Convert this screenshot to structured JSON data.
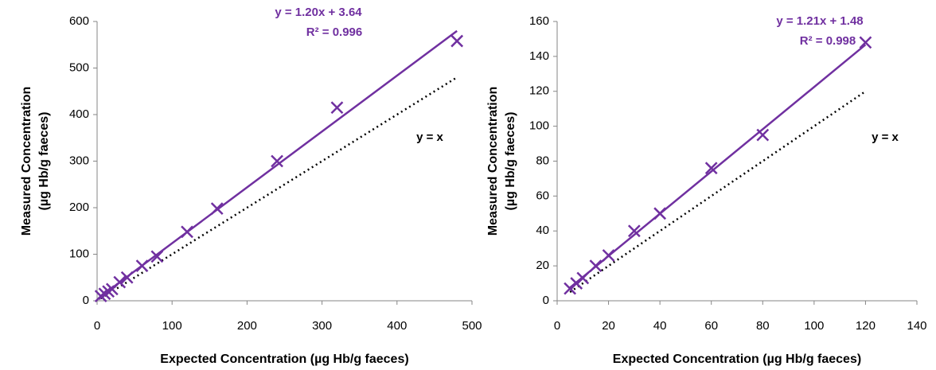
{
  "chart_data": [
    {
      "type": "scatter",
      "x_label": "Expected Concentration (µg Hb/g faeces)",
      "y_label": [
        "Measured Concentration",
        "(µg Hb/g faeces)"
      ],
      "xlim": [
        0,
        500
      ],
      "xticks": [
        0,
        100,
        200,
        300,
        400,
        500
      ],
      "ylim": [
        0,
        600
      ],
      "yticks": [
        0,
        100,
        200,
        300,
        400,
        500,
        600
      ],
      "series": [
        {
          "color": "#7030a0",
          "x": [
            5,
            10,
            15,
            20,
            30,
            40,
            60,
            80,
            120,
            160,
            240,
            320,
            480
          ],
          "values": [
            10,
            15,
            20,
            25,
            40,
            50,
            75,
            95,
            148,
            198,
            300,
            415,
            558
          ]
        }
      ],
      "trendline": {
        "label": "y = 1.20x + 3.64",
        "slope": 1.2,
        "intercept": 3.64,
        "r2_label": "R² = 0.996",
        "color": "#7030a0"
      },
      "reference_line": {
        "label": "y = x",
        "color": "#000000"
      }
    },
    {
      "type": "scatter",
      "x_label": "Expected Concentration (µg Hb/g faeces)",
      "y_label": [
        "Measured Concentration",
        "(µg Hb/g faeces)"
      ],
      "xlim": [
        0,
        140
      ],
      "xticks": [
        0,
        20,
        40,
        60,
        80,
        100,
        120,
        140
      ],
      "ylim": [
        0,
        160
      ],
      "yticks": [
        0,
        20,
        40,
        60,
        80,
        100,
        120,
        140,
        160
      ],
      "series": [
        {
          "color": "#7030a0",
          "x": [
            5,
            7.5,
            10,
            15,
            20,
            30,
            40,
            60,
            80,
            120
          ],
          "values": [
            7,
            10,
            13,
            20,
            26,
            40,
            50,
            76,
            95,
            148
          ]
        }
      ],
      "trendline": {
        "label": "y = 1.21x + 1.48",
        "slope": 1.21,
        "intercept": 1.48,
        "r2_label": "R² = 0.998",
        "color": "#7030a0"
      },
      "reference_line": {
        "label": "y = x",
        "color": "#000000"
      }
    }
  ]
}
